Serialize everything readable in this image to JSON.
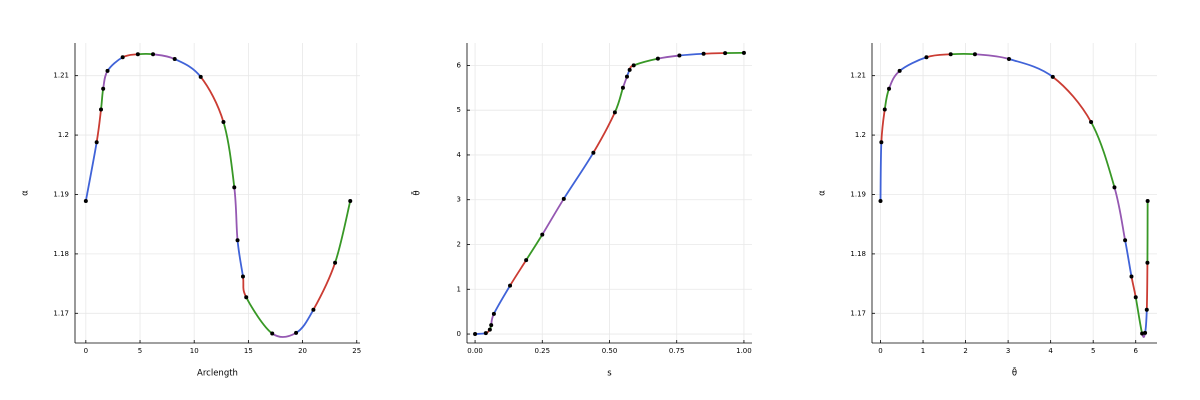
{
  "chart_data": [
    {
      "type": "spline",
      "xlabel": "Arclength",
      "ylabel": "α",
      "x": [
        0,
        1.0,
        1.4,
        1.6,
        2.0,
        3.4,
        4.8,
        6.2,
        8.2,
        10.6,
        12.7,
        13.7,
        14.0,
        14.5,
        14.8,
        17.2,
        19.4,
        21.0,
        23.0,
        24.4
      ],
      "values": [
        1.1889,
        1.1988,
        1.2043,
        1.2078,
        1.2108,
        1.2131,
        1.2136,
        1.2136,
        1.2128,
        1.2098,
        1.2022,
        1.1912,
        1.1823,
        1.1762,
        1.1727,
        1.1666,
        1.1667,
        1.1706,
        1.1785,
        1.1889
      ],
      "segment_colors": [
        "#4063d8",
        "#cb3c33",
        "#389826",
        "#9558b2"
      ],
      "marker_color": "#000000",
      "xlim": [
        -1,
        25.3
      ],
      "xticks": [
        0,
        5,
        10,
        15,
        20,
        25
      ],
      "ylim": [
        1.165,
        1.2155
      ],
      "yticks": [
        1.17,
        1.18,
        1.19,
        1.2,
        1.21
      ],
      "grid": true
    },
    {
      "type": "spline",
      "xlabel": "s",
      "ylabel": "θ̄",
      "x": [
        0,
        0.04,
        0.055,
        0.06,
        0.07,
        0.13,
        0.19,
        0.25,
        0.33,
        0.44,
        0.52,
        0.55,
        0.565,
        0.575,
        0.59,
        0.68,
        0.76,
        0.85,
        0.93,
        1.0
      ],
      "values": [
        0,
        0.02,
        0.1,
        0.2,
        0.45,
        1.08,
        1.65,
        2.22,
        3.02,
        4.05,
        4.95,
        5.5,
        5.75,
        5.9,
        6.0,
        6.15,
        6.22,
        6.26,
        6.275,
        6.28
      ],
      "segment_colors": [
        "#4063d8",
        "#cb3c33",
        "#389826",
        "#9558b2"
      ],
      "marker_color": "#000000",
      "xlim": [
        -0.03,
        1.03
      ],
      "xticks": [
        {
          "value": 0,
          "label": "0.00"
        },
        {
          "value": 0.25,
          "label": "0.25"
        },
        {
          "value": 0.5,
          "label": "0.50"
        },
        {
          "value": 0.75,
          "label": "0.75"
        },
        {
          "value": 1,
          "label": "1.00"
        }
      ],
      "ylim": [
        -0.2,
        6.5
      ],
      "yticks": [
        0,
        1,
        2,
        3,
        4,
        5,
        6
      ],
      "grid": true
    },
    {
      "type": "spline",
      "xlabel": "θ̄",
      "ylabel": "α",
      "x": [
        0,
        0.02,
        0.1,
        0.2,
        0.45,
        1.08,
        1.65,
        2.22,
        3.02,
        4.05,
        4.95,
        5.5,
        5.75,
        5.9,
        6.0,
        6.15,
        6.22,
        6.26,
        6.275,
        6.28
      ],
      "values": [
        1.1889,
        1.1988,
        1.2043,
        1.2078,
        1.2108,
        1.2131,
        1.2136,
        1.2136,
        1.2128,
        1.2098,
        1.2022,
        1.1912,
        1.1823,
        1.1762,
        1.1727,
        1.1666,
        1.1667,
        1.1706,
        1.1785,
        1.1889
      ],
      "segment_colors": [
        "#4063d8",
        "#cb3c33",
        "#389826",
        "#9558b2"
      ],
      "marker_color": "#000000",
      "xlim": [
        -0.2,
        6.5
      ],
      "xticks": [
        0,
        1,
        2,
        3,
        4,
        5,
        6
      ],
      "ylim": [
        1.165,
        1.2155
      ],
      "yticks": [
        1.17,
        1.18,
        1.19,
        1.2,
        1.21
      ],
      "grid": true
    }
  ]
}
